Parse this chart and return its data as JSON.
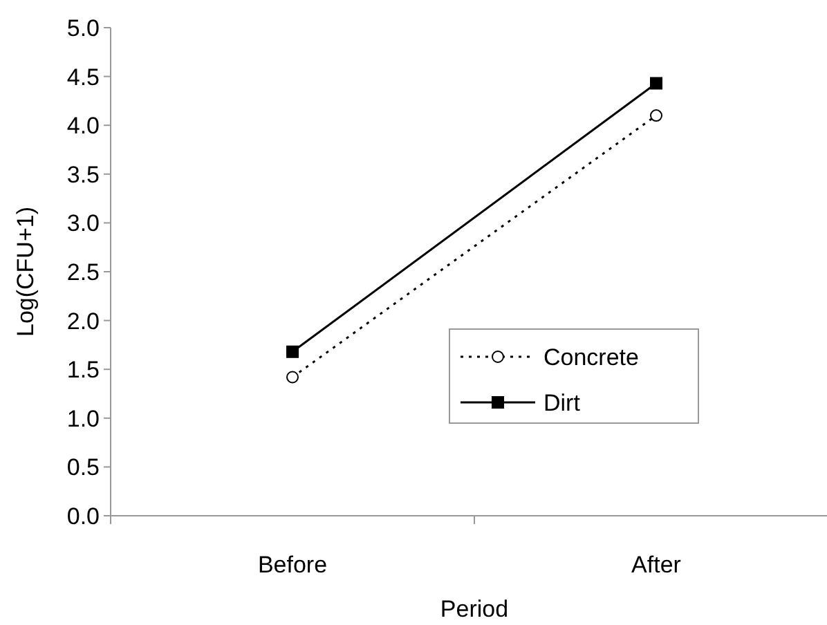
{
  "chart_data": {
    "type": "line",
    "xlabel": "Period",
    "ylabel": "Log(CFU+1)",
    "categories": [
      "Before",
      "After"
    ],
    "series": [
      {
        "name": "Concrete",
        "color": "#000000",
        "values": [
          1.42,
          4.1
        ],
        "marker": "circle",
        "line_style": "dotted"
      },
      {
        "name": "Dirt",
        "color": "#000000",
        "values": [
          1.68,
          4.43
        ],
        "marker": "square",
        "line_style": "solid"
      }
    ],
    "ylim": [
      0,
      5
    ],
    "yticks": [
      {
        "value": 0,
        "label": "0.0"
      },
      {
        "value": 0.5,
        "label": "0.5"
      },
      {
        "value": 1,
        "label": "1.0"
      },
      {
        "value": 1.5,
        "label": "1.5"
      },
      {
        "value": 2,
        "label": "2.0"
      },
      {
        "value": 2.5,
        "label": "2.5"
      },
      {
        "value": 3,
        "label": "3.0"
      },
      {
        "value": 3.5,
        "label": "3.5"
      },
      {
        "value": 4,
        "label": "4.0"
      },
      {
        "value": 4.5,
        "label": "4.5"
      },
      {
        "value": 5,
        "label": "5.0"
      }
    ],
    "grid": false,
    "legend": "right"
  }
}
